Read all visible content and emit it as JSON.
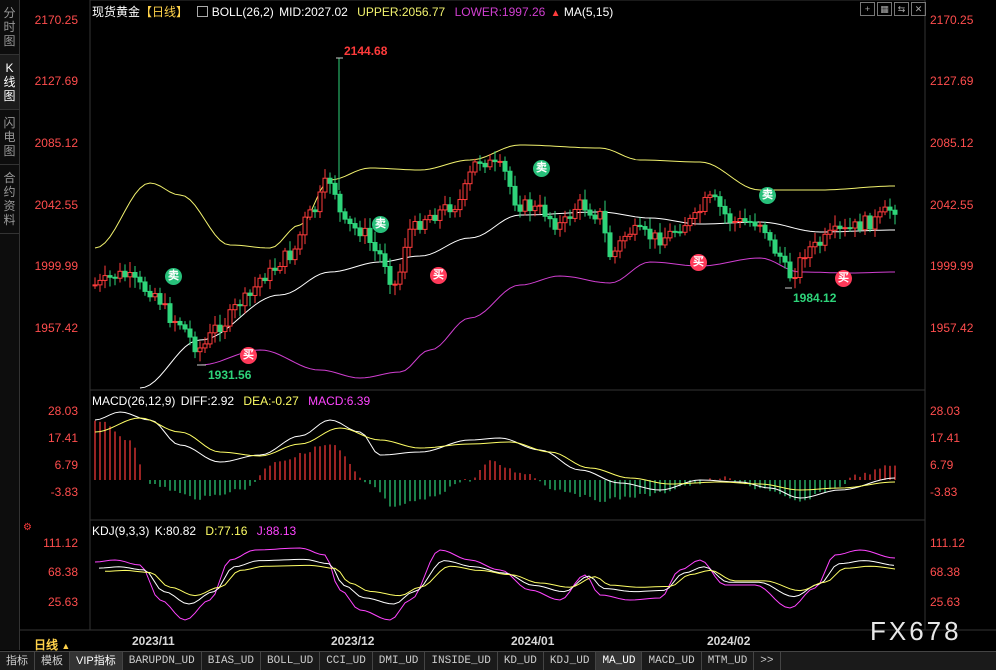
{
  "side_tabs": [
    "分时图",
    "K线图",
    "闪电图",
    "合约资料"
  ],
  "header": {
    "symbol": "现货黄金",
    "period_tag": "【日线】",
    "boll": "BOLL(26,2)",
    "mid": "MID:2027.02",
    "upper": "UPPER:2056.77",
    "lower": "LOWER:1997.26",
    "ma": "MA(5,15)"
  },
  "macd_header": {
    "name": "MACD(26,12,9)",
    "diff": "DIFF:2.92",
    "dea": "DEA:-0.27",
    "macd": "MACD:6.39"
  },
  "kdj_header": {
    "name": "KDJ(9,3,3)",
    "k": "K:80.82",
    "d": "D:77.16",
    "j": "J:88.13"
  },
  "price_axis": [
    "2170.25",
    "2127.69",
    "2085.12",
    "2042.55",
    "1999.99",
    "1957.42"
  ],
  "macd_axis": [
    "28.03",
    "17.41",
    "6.79",
    "-3.83"
  ],
  "kdj_axis": [
    "111.12",
    "68.38",
    "25.63"
  ],
  "x_axis": [
    "2023/11",
    "2023/12",
    "2024/01",
    "2024/02"
  ],
  "annotations": {
    "high": "2144.68",
    "low1": "1931.56",
    "low2": "1984.12"
  },
  "signals": {
    "buy": "买",
    "sell": "卖"
  },
  "period_label": "日线",
  "bottom_tabs": [
    "指标",
    "模板",
    "VIP指标",
    "BARUPDN_UD",
    "BIAS_UD",
    "BOLL_UD",
    "CCI_UD",
    "DMI_UD",
    "INSIDE_UD",
    "KD_UD",
    "KDJ_UD",
    "MA_UD",
    "MACD_UD",
    "MTM_UD",
    ">>"
  ],
  "watermark": "FX678",
  "colors": {
    "up": "#ff3b3b",
    "down": "#2ed47a",
    "upper": "#f2f26e",
    "mid": "#ffffff",
    "lower": "#d13fd1",
    "macd_diff": "#ffffff",
    "macd_dea": "#ffff66",
    "kdj_j": "#ff44ff"
  },
  "window_icons": [
    "add-icon",
    "grid-icon",
    "swap-icon",
    "close-icon"
  ]
}
